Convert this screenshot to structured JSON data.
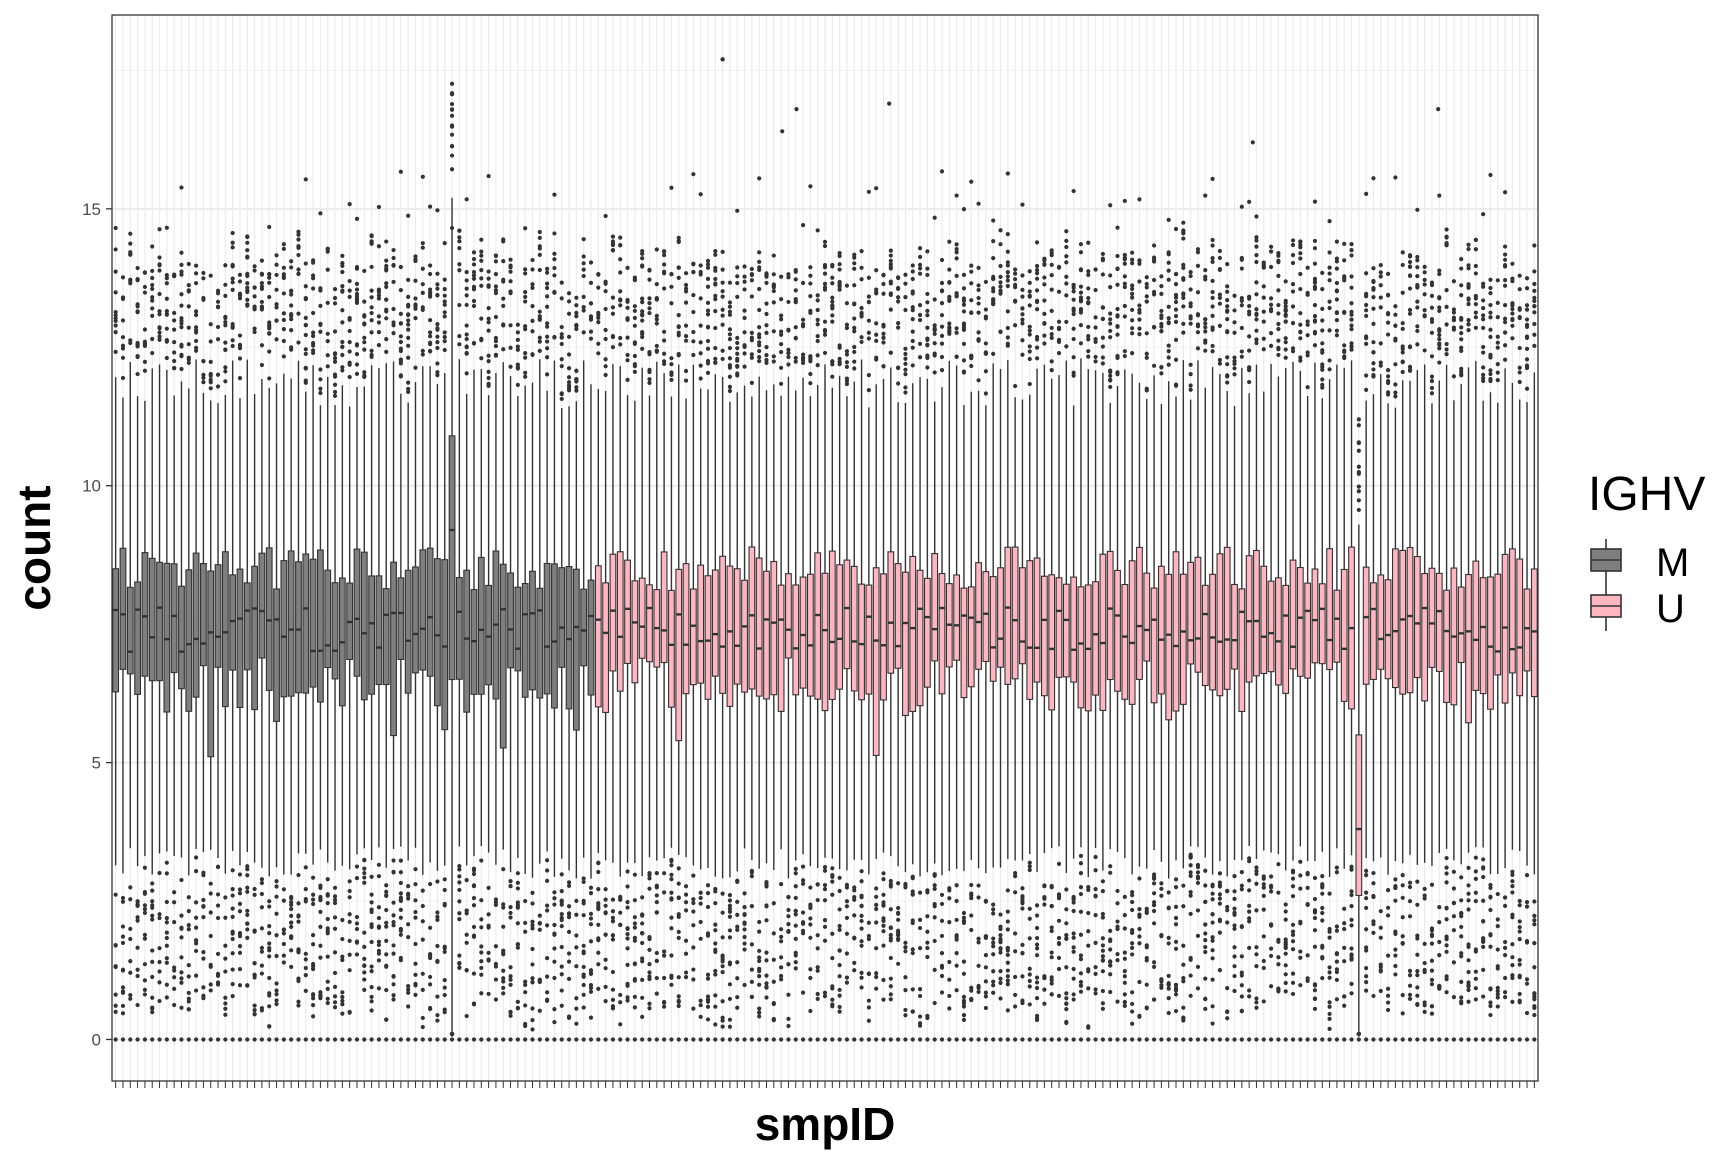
{
  "chart_data": {
    "type": "box",
    "title": "",
    "xlabel": "smpID",
    "ylabel": "count",
    "ylim": [
      -0.75,
      18.5
    ],
    "yticks": [
      0,
      5,
      10,
      15
    ],
    "grid": true,
    "legend": {
      "title": "IGHV",
      "position": "right",
      "entries": [
        {
          "label": "M",
          "color": "#7f7f7f"
        },
        {
          "label": "U",
          "color": "#ffb6c1"
        }
      ]
    },
    "n_samples": 195,
    "x_tick_labels_shown": false,
    "groups": [
      {
        "name": "M",
        "samples": [
          1,
          66
        ],
        "color": "#7f7f7f"
      },
      {
        "name": "U",
        "samples": [
          67,
          195
        ],
        "color": "#ffb6c1"
      }
    ],
    "typical_box": {
      "q1": 6.4,
      "median": 7.4,
      "q3": 8.5,
      "whisker_low": 3.5,
      "whisker_high": 11.7,
      "min": 0,
      "max": 15.5
    },
    "range_stats": {
      "q1": [
        5.0,
        6.9
      ],
      "median": [
        7.0,
        7.8
      ],
      "q3": [
        8.1,
        8.9
      ]
    },
    "notable": [
      {
        "sample": 47,
        "group": "M",
        "q1": 6.5,
        "median": 9.2,
        "q3": 10.9,
        "note": "high outlier sample"
      },
      {
        "sample": 171,
        "group": "U",
        "q1": 2.6,
        "median": 3.8,
        "q3": 5.5,
        "note": "low outlier sample"
      }
    ],
    "max_outlier": 17.7
  }
}
